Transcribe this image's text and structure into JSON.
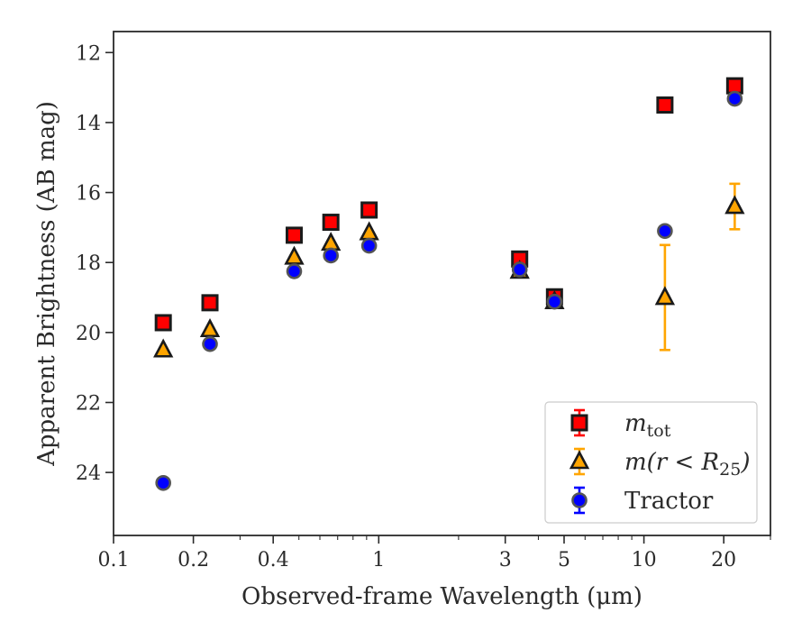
{
  "chart_data": {
    "type": "scatter",
    "xscale": "log",
    "xlim": [
      0.1,
      30
    ],
    "ylim": [
      25.8,
      11.4
    ],
    "y_inverted": true,
    "xlabel": "Observed-frame Wavelength (μm)",
    "ylabel": "Apparent Brightness (AB mag)",
    "xticks": [
      {
        "value": 0.1,
        "label": "0.1"
      },
      {
        "value": 0.2,
        "label": "0.2"
      },
      {
        "value": 0.4,
        "label": "0.4"
      },
      {
        "value": 1,
        "label": "1"
      },
      {
        "value": 3,
        "label": "3"
      },
      {
        "value": 5,
        "label": "5"
      },
      {
        "value": 10,
        "label": "10"
      },
      {
        "value": 20,
        "label": "20"
      }
    ],
    "yticks": [
      {
        "value": 12,
        "label": "12"
      },
      {
        "value": 14,
        "label": "14"
      },
      {
        "value": 16,
        "label": "16"
      },
      {
        "value": 18,
        "label": "18"
      },
      {
        "value": 20,
        "label": "20"
      },
      {
        "value": 22,
        "label": "22"
      },
      {
        "value": 24,
        "label": "24"
      }
    ],
    "grid": false,
    "legend_position": "bottom-right",
    "series": [
      {
        "name": "m_tot",
        "legend_label": {
          "main": "m",
          "sub": "tot"
        },
        "marker": "square",
        "face_color": "#ff0000",
        "edge_color": "#1a1a1a",
        "error_color": "#ff0000",
        "points": [
          {
            "x": 0.154,
            "y": 19.72
          },
          {
            "x": 0.231,
            "y": 19.15
          },
          {
            "x": 0.48,
            "y": 17.22
          },
          {
            "x": 0.66,
            "y": 16.85
          },
          {
            "x": 0.92,
            "y": 16.5
          },
          {
            "x": 3.4,
            "y": 17.9
          },
          {
            "x": 4.6,
            "y": 18.98
          },
          {
            "x": 12.0,
            "y": 13.5
          },
          {
            "x": 22.0,
            "y": 12.95
          }
        ]
      },
      {
        "name": "m(r < R25)",
        "legend_label": {
          "main": "m(r < R",
          "sub": "25",
          "close": ")"
        },
        "marker": "triangle",
        "face_color": "#ffa500",
        "edge_color": "#1a1a1a",
        "error_color": "#ffa500",
        "points": [
          {
            "x": 0.154,
            "y": 20.5
          },
          {
            "x": 0.231,
            "y": 19.92
          },
          {
            "x": 0.48,
            "y": 17.85
          },
          {
            "x": 0.66,
            "y": 17.45
          },
          {
            "x": 0.92,
            "y": 17.15
          },
          {
            "x": 3.4,
            "y": 18.25
          },
          {
            "x": 4.6,
            "y": 19.12
          },
          {
            "x": 12.0,
            "y": 19.0,
            "yerr": 1.5
          },
          {
            "x": 22.0,
            "y": 16.4,
            "yerr": 0.65
          }
        ]
      },
      {
        "name": "Tractor",
        "legend_label": {
          "main": "Tractor"
        },
        "marker": "circle",
        "face_color": "#0000ff",
        "edge_color": "#555555",
        "error_color": "#0000ff",
        "points": [
          {
            "x": 0.154,
            "y": 24.3
          },
          {
            "x": 0.231,
            "y": 20.33
          },
          {
            "x": 0.48,
            "y": 18.25
          },
          {
            "x": 0.66,
            "y": 17.8
          },
          {
            "x": 0.92,
            "y": 17.52
          },
          {
            "x": 3.4,
            "y": 18.2
          },
          {
            "x": 4.6,
            "y": 19.12
          },
          {
            "x": 12.0,
            "y": 17.1
          },
          {
            "x": 22.0,
            "y": 13.32
          }
        ]
      }
    ]
  }
}
